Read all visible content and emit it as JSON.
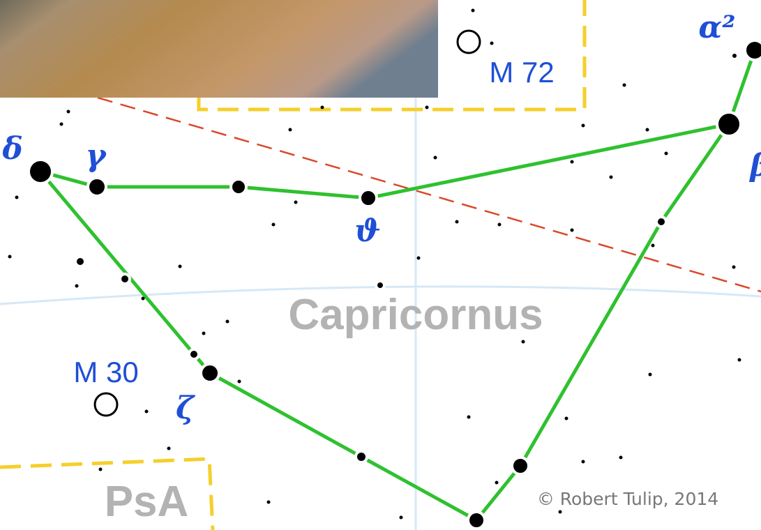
{
  "stars": [
    {
      "label": "δ"
    },
    {
      "label": "γ"
    },
    {
      "label": "ϑ"
    },
    {
      "label": "ζ"
    },
    {
      "label": "α²"
    },
    {
      "label": "β"
    }
  ],
  "objects": [
    {
      "label": "M 72"
    },
    {
      "label": "M 30"
    }
  ],
  "constellation": "Capricornus",
  "neighbor": "PsA",
  "copyright": "© Robert Tulip, 2014"
}
